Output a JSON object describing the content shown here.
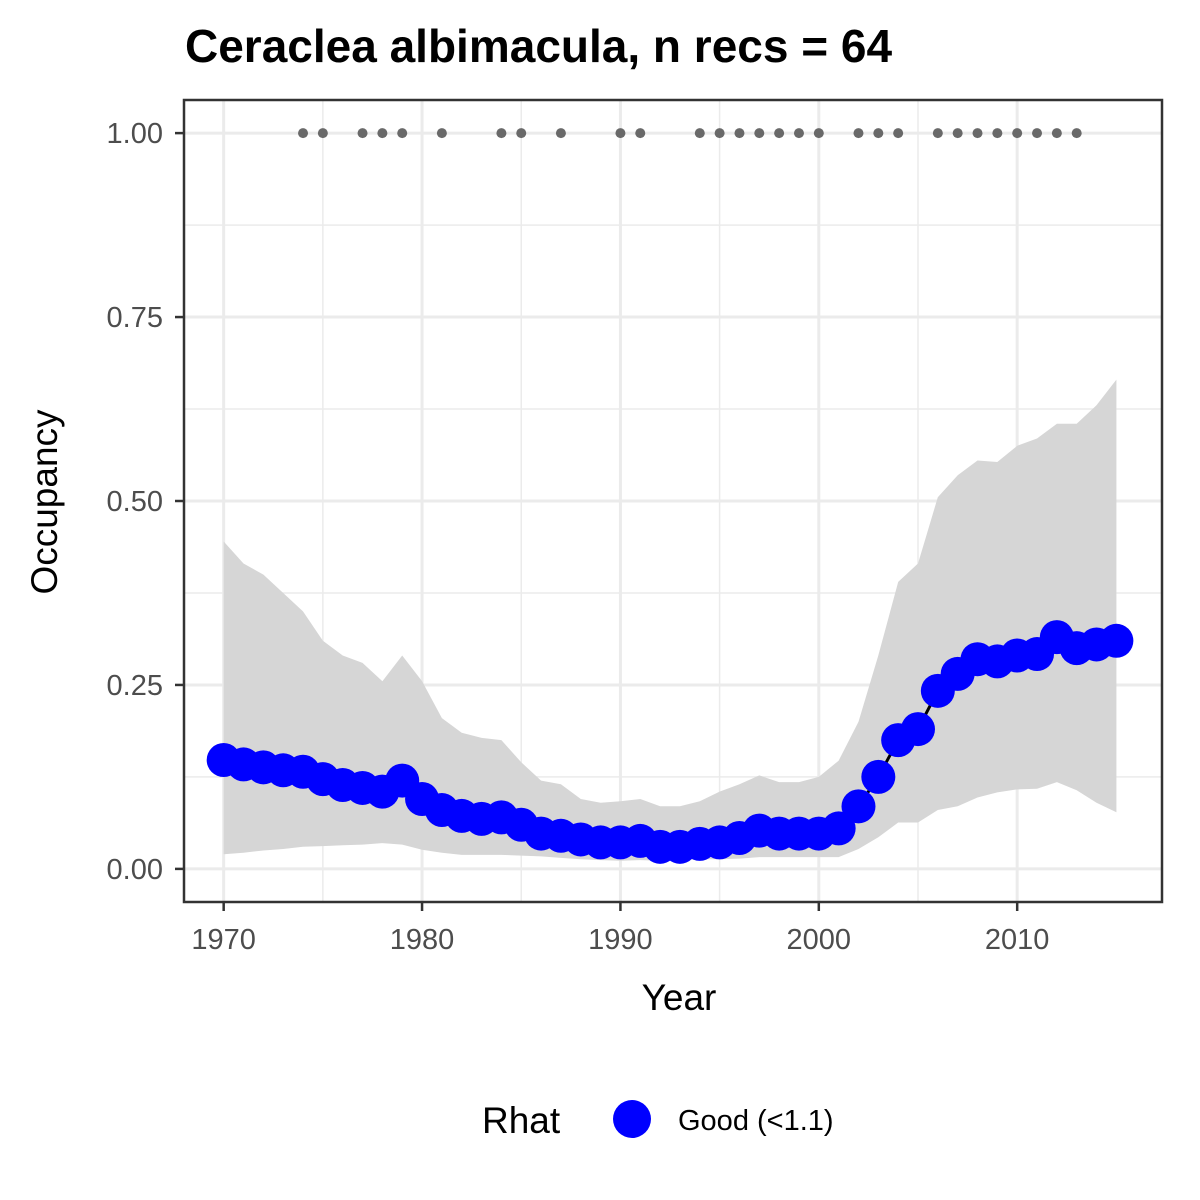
{
  "chart_data": {
    "type": "line",
    "title": "Ceraclea albimacula, n recs = 64",
    "xlabel": "Year",
    "ylabel": "Occupancy",
    "xlim": [
      1968,
      2017.3
    ],
    "ylim": [
      -0.045,
      1.045
    ],
    "x_ticks": [
      1970,
      1980,
      1990,
      2000,
      2010
    ],
    "x_tick_labels": [
      "1970",
      "1980",
      "1990",
      "2000",
      "2010"
    ],
    "y_ticks": [
      0,
      0.25,
      0.5,
      0.75,
      1.0
    ],
    "y_tick_labels": [
      "0.00",
      "0.25",
      "0.50",
      "0.75",
      "1.00"
    ],
    "grid": true,
    "legend_position": "bottom",
    "colors": {
      "point": "#0000ff",
      "band": "#d6d6d6",
      "record": "#696969",
      "grid": "#ebebeb",
      "frame": "#333333"
    },
    "series": [
      {
        "x": [
          1970,
          1971,
          1972,
          1973,
          1974,
          1975,
          1976,
          1977,
          1978,
          1979,
          1980,
          1981,
          1982,
          1983,
          1984,
          1985,
          1986,
          1987,
          1988,
          1989,
          1990,
          1991,
          1992,
          1993,
          1994,
          1995,
          1996,
          1997,
          1998,
          1999,
          2000,
          2001,
          2002,
          2003,
          2004,
          2005,
          2006,
          2007,
          2008,
          2009,
          2010,
          2011,
          2012,
          2013,
          2014,
          2015
        ],
        "values": [
          0.148,
          0.142,
          0.138,
          0.134,
          0.132,
          0.122,
          0.114,
          0.11,
          0.105,
          0.12,
          0.095,
          0.08,
          0.072,
          0.068,
          0.07,
          0.06,
          0.048,
          0.045,
          0.04,
          0.036,
          0.036,
          0.038,
          0.03,
          0.03,
          0.034,
          0.036,
          0.042,
          0.052,
          0.048,
          0.048,
          0.048,
          0.055,
          0.085,
          0.125,
          0.175,
          0.19,
          0.242,
          0.265,
          0.285,
          0.282,
          0.29,
          0.292,
          0.315,
          0.3,
          0.305,
          0.31
        ],
        "lower": [
          0.02,
          0.022,
          0.025,
          0.027,
          0.03,
          0.031,
          0.032,
          0.033,
          0.035,
          0.033,
          0.026,
          0.022,
          0.019,
          0.019,
          0.019,
          0.018,
          0.017,
          0.015,
          0.013,
          0.012,
          0.011,
          0.012,
          0.011,
          0.012,
          0.013,
          0.013,
          0.014,
          0.016,
          0.016,
          0.016,
          0.016,
          0.016,
          0.027,
          0.043,
          0.063,
          0.063,
          0.08,
          0.085,
          0.097,
          0.104,
          0.108,
          0.109,
          0.118,
          0.107,
          0.09,
          0.077
        ],
        "upper": [
          0.445,
          0.415,
          0.4,
          0.375,
          0.35,
          0.31,
          0.29,
          0.28,
          0.255,
          0.29,
          0.255,
          0.205,
          0.185,
          0.178,
          0.175,
          0.145,
          0.12,
          0.115,
          0.095,
          0.09,
          0.092,
          0.095,
          0.085,
          0.085,
          0.092,
          0.105,
          0.115,
          0.127,
          0.118,
          0.118,
          0.125,
          0.147,
          0.2,
          0.29,
          0.39,
          0.415,
          0.505,
          0.535,
          0.555,
          0.553,
          0.575,
          0.585,
          0.605,
          0.605,
          0.63,
          0.665
        ]
      }
    ],
    "records": {
      "y": 1.0,
      "x": [
        1974,
        1975,
        1977,
        1978,
        1979,
        1981,
        1984,
        1985,
        1987,
        1990,
        1991,
        1994,
        1995,
        1996,
        1997,
        1998,
        1999,
        2000,
        2002,
        2003,
        2004,
        2006,
        2007,
        2008,
        2009,
        2010,
        2011,
        2012,
        2013
      ]
    },
    "legend": {
      "title": "Rhat",
      "entries": [
        "Good (<1.1)"
      ]
    }
  }
}
